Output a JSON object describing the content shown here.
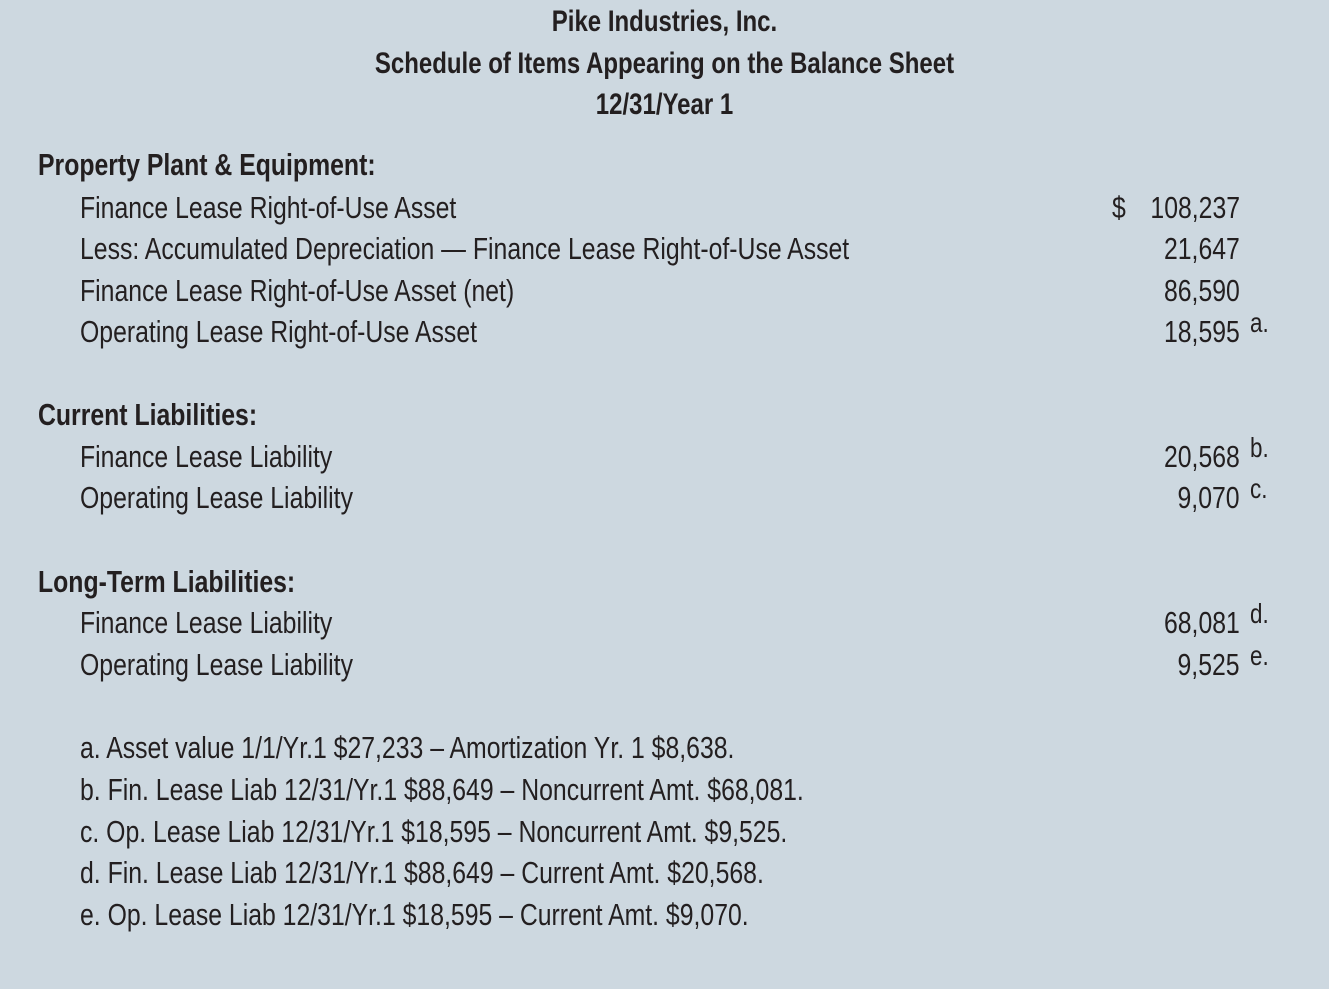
{
  "header": {
    "company": "Pike Industries, Inc.",
    "title": "Schedule of Items Appearing on the Balance Sheet",
    "date": "12/31/Year 1"
  },
  "sections": [
    {
      "heading": "Property Plant & Equipment:",
      "items": [
        {
          "label": "Finance Lease Right-of-Use Asset",
          "currency": "$",
          "amount": "108,237",
          "note": ""
        },
        {
          "label": "Less: Accumulated Depreciation — Finance Lease Right-of-Use Asset",
          "amount": "21,647",
          "note": ""
        },
        {
          "label": "Finance Lease Right-of-Use Asset (net)",
          "amount": "86,590",
          "note": ""
        },
        {
          "label": "Operating Lease Right-of-Use Asset",
          "amount": "18,595",
          "note": "a."
        }
      ]
    },
    {
      "heading": "Current Liabilities:",
      "items": [
        {
          "label": "Finance Lease Liability",
          "amount": "20,568",
          "note": "b."
        },
        {
          "label": "Operating Lease Liability",
          "amount": "9,070",
          "note": "c."
        }
      ]
    },
    {
      "heading": "Long-Term Liabilities:",
      "items": [
        {
          "label": "Finance Lease Liability",
          "amount": "68,081",
          "note": "d."
        },
        {
          "label": "Operating Lease Liability",
          "amount": "9,525",
          "note": "e."
        }
      ]
    }
  ],
  "footnotes": [
    "a. Asset value 1/1/Yr.1 $27,233 – Amortization Yr. 1 $8,638.",
    "b. Fin. Lease Liab 12/31/Yr.1 $88,649 – Noncurrent Amt. $68,081.",
    "c. Op. Lease Liab 12/31/Yr.1 $18,595 – Noncurrent Amt. $9,525.",
    "d. Fin. Lease Liab 12/31/Yr.1 $88,649 – Current Amt. $20,568.",
    "e. Op. Lease Liab 12/31/Yr.1 $18,595 – Current Amt. $9,070."
  ],
  "colors": {
    "background": "#cdd8e0",
    "text": "#231f20"
  }
}
